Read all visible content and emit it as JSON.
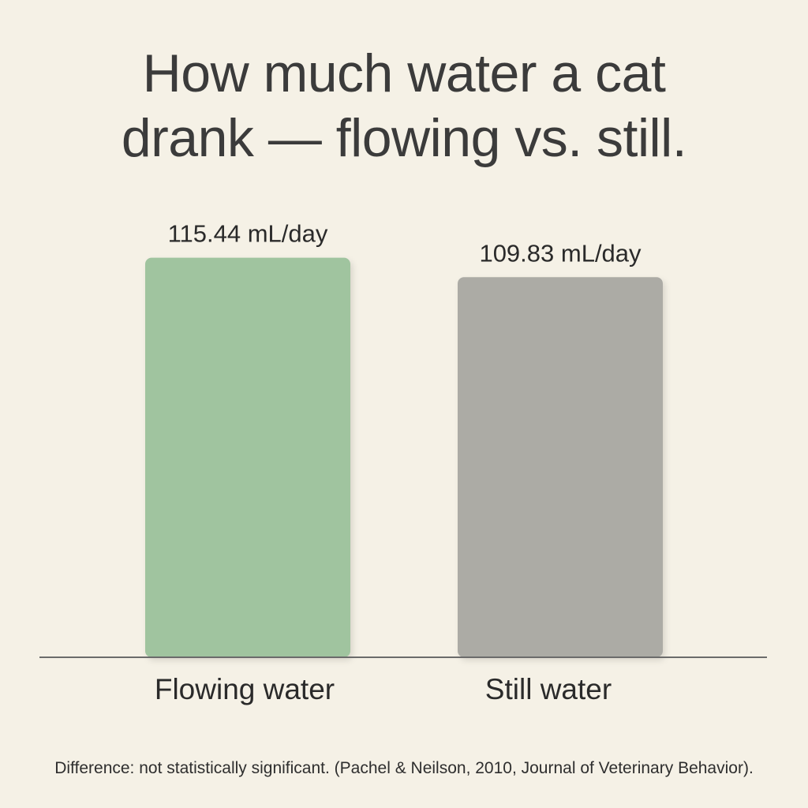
{
  "title_lines": [
    "How much water a cat",
    "drank — flowing vs. still."
  ],
  "footnote": "Difference: not statistically significant. (Pachel & Neilson, 2010, Journal of Veterinary Behavior).",
  "colors": {
    "background": "#f5f1e6",
    "flowing_bar": "#a0c49f",
    "still_bar": "#acaba5",
    "baseline": "#6b6b6b",
    "text": "#3b3b3b"
  },
  "chart_data": {
    "type": "bar",
    "categories": [
      "Flowing water",
      "Still water"
    ],
    "values": [
      115.44,
      109.83
    ],
    "value_labels": [
      "115.44 mL/day",
      "109.83 mL/day"
    ],
    "unit": "mL/day",
    "grid": false,
    "legend": "none"
  }
}
